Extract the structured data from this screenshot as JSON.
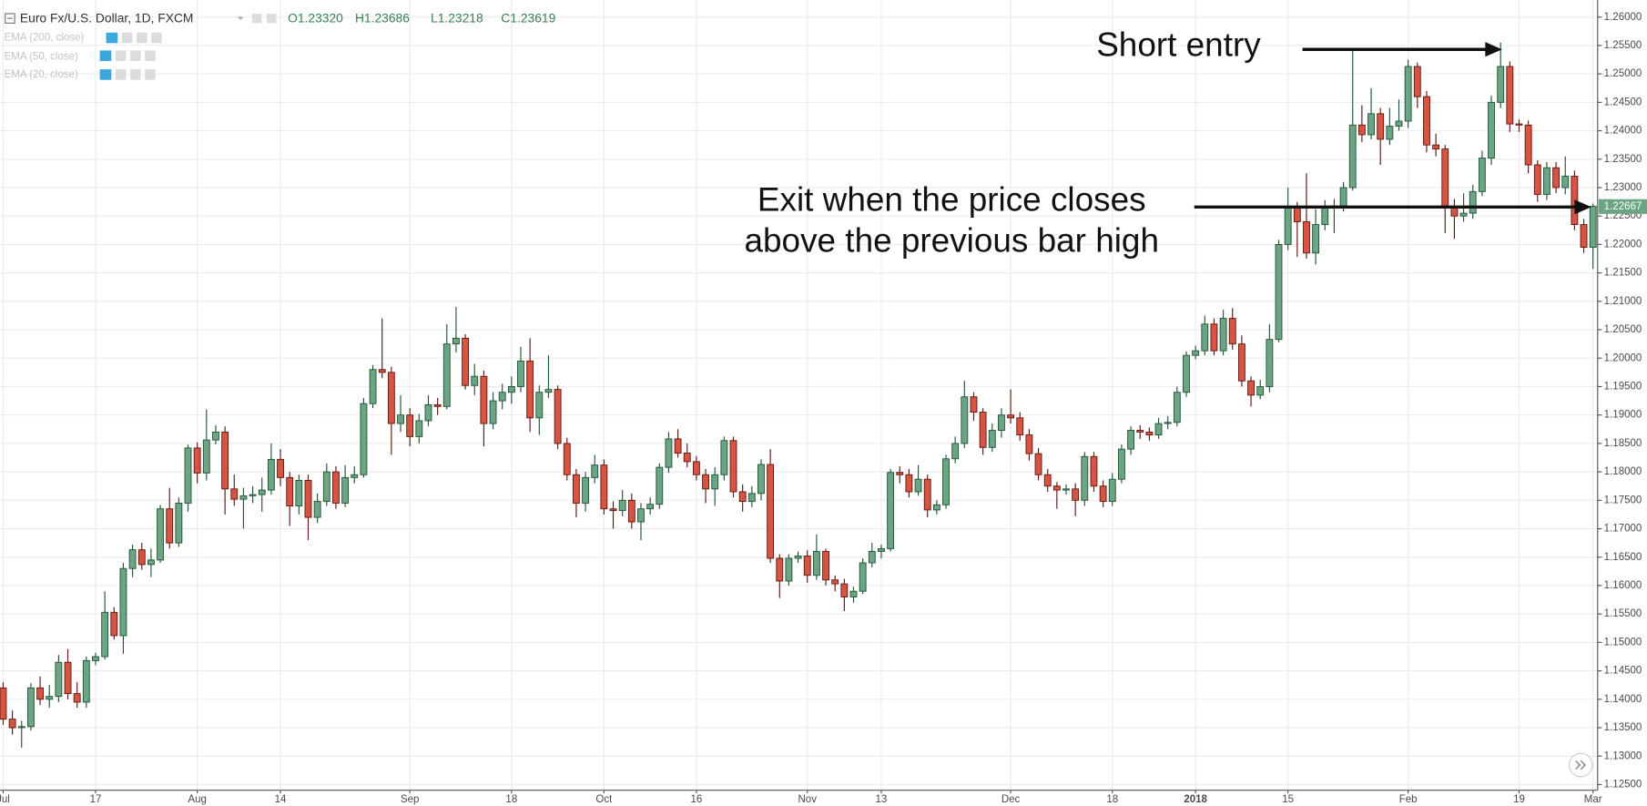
{
  "chart_data": {
    "type": "candlestick",
    "title": "Euro Fx/U.S. Dollar, 1D, FXCM",
    "ohlc_labels": [
      "O1.23320",
      "H1.23686",
      "L1.23218",
      "C1.23619"
    ],
    "indicators": [
      "EMA (200, close)",
      "EMA (50, close)",
      "EMA (20, close)"
    ],
    "annotations": [
      "Short entry",
      "Exit when the price closes",
      "above the previous bar high"
    ],
    "up_color": "#6ba583",
    "down_color": "#d75442",
    "last_price": 1.22667,
    "grid": true,
    "ylim": [
      1.124,
      1.263
    ],
    "yticks": [
      {
        "value": 1.125,
        "label": "1.12500"
      },
      {
        "value": 1.13,
        "label": "1.13000"
      },
      {
        "value": 1.135,
        "label": "1.13500"
      },
      {
        "value": 1.14,
        "label": "1.14000"
      },
      {
        "value": 1.145,
        "label": "1.14500"
      },
      {
        "value": 1.15,
        "label": "1.15000"
      },
      {
        "value": 1.155,
        "label": "1.15500"
      },
      {
        "value": 1.16,
        "label": "1.16000"
      },
      {
        "value": 1.165,
        "label": "1.16500"
      },
      {
        "value": 1.17,
        "label": "1.17000"
      },
      {
        "value": 1.175,
        "label": "1.17500"
      },
      {
        "value": 1.18,
        "label": "1.18000"
      },
      {
        "value": 1.185,
        "label": "1.18500"
      },
      {
        "value": 1.19,
        "label": "1.19000"
      },
      {
        "value": 1.195,
        "label": "1.19500"
      },
      {
        "value": 1.2,
        "label": "1.20000"
      },
      {
        "value": 1.205,
        "label": "1.20500"
      },
      {
        "value": 1.21,
        "label": "1.21000"
      },
      {
        "value": 1.215,
        "label": "1.21500"
      },
      {
        "value": 1.22,
        "label": "1.22000"
      },
      {
        "value": 1.225,
        "label": "1.22500"
      },
      {
        "value": 1.23,
        "label": "1.23000"
      },
      {
        "value": 1.235,
        "label": "1.23500"
      },
      {
        "value": 1.24,
        "label": "1.24000"
      },
      {
        "value": 1.245,
        "label": "1.24500"
      },
      {
        "value": 1.25,
        "label": "1.25000"
      },
      {
        "value": 1.255,
        "label": "1.25500"
      },
      {
        "value": 1.26,
        "label": "1.26000"
      }
    ],
    "categories": [
      "Jul",
      null,
      null,
      null,
      null,
      null,
      null,
      null,
      null,
      null,
      "17",
      null,
      null,
      null,
      null,
      null,
      null,
      null,
      null,
      null,
      null,
      "Aug",
      null,
      null,
      null,
      null,
      null,
      null,
      null,
      null,
      "14",
      null,
      null,
      null,
      null,
      null,
      null,
      null,
      null,
      null,
      null,
      null,
      null,
      null,
      "Sep",
      null,
      null,
      null,
      null,
      null,
      null,
      null,
      null,
      null,
      null,
      "18",
      null,
      null,
      null,
      null,
      null,
      null,
      null,
      null,
      null,
      "Oct",
      null,
      null,
      null,
      null,
      null,
      null,
      null,
      null,
      null,
      "16",
      null,
      null,
      null,
      null,
      null,
      null,
      null,
      null,
      null,
      null,
      null,
      "Nov",
      null,
      null,
      null,
      null,
      null,
      null,
      null,
      "13",
      null,
      null,
      null,
      null,
      null,
      null,
      null,
      null,
      null,
      null,
      null,
      null,
      null,
      "Dec",
      null,
      null,
      null,
      null,
      null,
      null,
      null,
      null,
      null,
      null,
      "18",
      null,
      null,
      null,
      null,
      null,
      null,
      null,
      null,
      "2018",
      null,
      null,
      null,
      null,
      null,
      null,
      null,
      null,
      null,
      "15",
      null,
      null,
      null,
      null,
      null,
      null,
      null,
      null,
      null,
      null,
      null,
      null,
      "Feb",
      null,
      null,
      null,
      null,
      null,
      null,
      null,
      null,
      null,
      null,
      null,
      "19",
      null,
      null,
      null,
      null,
      null,
      null,
      null,
      "Mar"
    ],
    "open": [
      1.142,
      1.1365,
      1.135,
      1.1352,
      1.142,
      1.14,
      1.1405,
      1.1465,
      1.141,
      1.1395,
      1.1468,
      1.1475,
      1.1553,
      1.1512,
      1.163,
      1.1663,
      1.1637,
      1.1645,
      1.1735,
      1.1675,
      1.1745,
      1.1842,
      1.1798,
      1.1856,
      1.187,
      1.177,
      1.1752,
      1.1758,
      1.176,
      1.1768,
      1.1822,
      1.179,
      1.174,
      1.1785,
      1.172,
      1.1748,
      1.18,
      1.1745,
      1.179,
      1.1795,
      1.192,
      1.198,
      1.1975,
      1.1885,
      1.19,
      1.1862,
      1.189,
      1.1918,
      1.1915,
      1.2025,
      1.2035,
      1.1952,
      1.1968,
      1.1885,
      1.1925,
      1.194,
      1.195,
      1.1995,
      1.1895,
      1.194,
      1.1945,
      1.185,
      1.1795,
      1.1745,
      1.179,
      1.1812,
      1.1735,
      1.1732,
      1.175,
      1.1712,
      1.1735,
      1.1743,
      1.1808,
      1.1858,
      1.1833,
      1.1818,
      1.1795,
      1.177,
      1.1795,
      1.1855,
      1.1765,
      1.1748,
      1.1762,
      1.1813,
      1.1648,
      1.1608,
      1.1648,
      1.1652,
      1.1618,
      1.166,
      1.161,
      1.1603,
      1.158,
      1.159,
      1.164,
      1.166,
      1.1665,
      1.1799,
      1.1795,
      1.1765,
      1.1787,
      1.1733,
      1.1742,
      1.1823,
      1.185,
      1.1932,
      1.1905,
      1.1843,
      1.1873,
      1.19,
      1.1895,
      1.1865,
      1.1832,
      1.1795,
      1.1775,
      1.1768,
      1.177,
      1.175,
      1.1827,
      1.1775,
      1.1748,
      1.1787,
      1.184,
      1.1873,
      1.187,
      1.1865,
      1.1885,
      1.1887,
      1.194,
      1.2005,
      1.2013,
      1.206,
      1.2013,
      1.207,
      1.2025,
      1.196,
      1.1935,
      1.195,
      1.2033,
      1.22,
      1.2265,
      1.224,
      1.2185,
      1.2235,
      1.2265,
      1.2268,
      1.23,
      1.241,
      1.2393,
      1.243,
      1.2385,
      1.2408,
      1.2417,
      1.2513,
      1.246,
      1.2375,
      1.2368,
      1.2265,
      1.225,
      1.2255,
      1.2293,
      1.2352,
      1.245,
      1.2513,
      1.2412,
      1.241,
      1.234,
      1.2288,
      1.2335,
      1.23,
      1.232,
      1.2235,
      1.2195
    ],
    "high": [
      1.143,
      1.138,
      1.1362,
      1.1428,
      1.144,
      1.1425,
      1.1478,
      1.1488,
      1.143,
      1.1475,
      1.1482,
      1.159,
      1.1562,
      1.164,
      1.1672,
      1.1675,
      1.1665,
      1.1742,
      1.1772,
      1.1755,
      1.1848,
      1.1852,
      1.191,
      1.1882,
      1.188,
      1.1795,
      1.1772,
      1.1775,
      1.179,
      1.185,
      1.184,
      1.18,
      1.1795,
      1.1795,
      1.1762,
      1.1815,
      1.181,
      1.1812,
      1.181,
      1.193,
      1.1988,
      1.207,
      1.1985,
      1.1935,
      1.1912,
      1.1902,
      1.1935,
      1.193,
      1.206,
      1.209,
      1.2042,
      1.199,
      1.1978,
      1.194,
      1.1955,
      1.1968,
      1.202,
      1.2035,
      1.1952,
      1.2005,
      1.1952,
      1.186,
      1.1805,
      1.18,
      1.183,
      1.1822,
      1.1748,
      1.1768,
      1.1762,
      1.1745,
      1.1755,
      1.1815,
      1.187,
      1.1875,
      1.185,
      1.1828,
      1.1805,
      1.1808,
      1.1862,
      1.1862,
      1.1778,
      1.1775,
      1.1822,
      1.184,
      1.1655,
      1.1655,
      1.166,
      1.1662,
      1.169,
      1.1665,
      1.1618,
      1.1612,
      1.1598,
      1.1648,
      1.1675,
      1.1672,
      1.1805,
      1.181,
      1.1805,
      1.1812,
      1.1795,
      1.175,
      1.183,
      1.1862,
      1.196,
      1.194,
      1.1912,
      1.1885,
      1.1912,
      1.1945,
      1.1905,
      1.1875,
      1.1842,
      1.1805,
      1.1782,
      1.1778,
      1.178,
      1.1835,
      1.1835,
      1.1785,
      1.1798,
      1.1848,
      1.188,
      1.1882,
      1.1878,
      1.1895,
      1.1898,
      1.195,
      1.2012,
      1.2022,
      1.2075,
      1.207,
      1.2085,
      1.2088,
      1.204,
      1.1968,
      1.1962,
      1.206,
      1.2208,
      1.23,
      1.2275,
      1.2325,
      1.2262,
      1.2278,
      1.228,
      1.231,
      1.2543,
      1.2445,
      1.2475,
      1.244,
      1.244,
      1.2455,
      1.2525,
      1.252,
      1.247,
      1.2395,
      1.2375,
      1.228,
      1.229,
      1.2305,
      1.2365,
      1.2462,
      1.2555,
      1.2522,
      1.242,
      1.2418,
      1.2348,
      1.2345,
      1.2345,
      1.2355,
      1.233,
      1.2245,
      1.2272
    ],
    "low": [
      1.1355,
      1.1338,
      1.1315,
      1.1345,
      1.139,
      1.1385,
      1.1395,
      1.14,
      1.1385,
      1.1385,
      1.146,
      1.147,
      1.1505,
      1.148,
      1.1615,
      1.1628,
      1.1615,
      1.164,
      1.1665,
      1.1668,
      1.173,
      1.178,
      1.1785,
      1.1848,
      1.1725,
      1.174,
      1.17,
      1.1745,
      1.173,
      1.176,
      1.1775,
      1.1705,
      1.1725,
      1.168,
      1.171,
      1.174,
      1.1735,
      1.1738,
      1.178,
      1.179,
      1.1912,
      1.1965,
      1.183,
      1.187,
      1.1845,
      1.185,
      1.188,
      1.19,
      1.191,
      1.201,
      1.1945,
      1.1935,
      1.1845,
      1.1875,
      1.191,
      1.192,
      1.194,
      1.187,
      1.1865,
      1.193,
      1.184,
      1.1785,
      1.172,
      1.173,
      1.178,
      1.1725,
      1.17,
      1.1722,
      1.17,
      1.168,
      1.1725,
      1.1735,
      1.1798,
      1.1825,
      1.1808,
      1.1785,
      1.1745,
      1.174,
      1.1785,
      1.1755,
      1.173,
      1.1738,
      1.175,
      1.164,
      1.1578,
      1.16,
      1.164,
      1.1605,
      1.161,
      1.16,
      1.159,
      1.1555,
      1.157,
      1.1585,
      1.1632,
      1.1648,
      1.166,
      1.178,
      1.1755,
      1.1758,
      1.172,
      1.1725,
      1.1735,
      1.1815,
      1.1842,
      1.189,
      1.183,
      1.1835,
      1.186,
      1.1885,
      1.1855,
      1.182,
      1.1785,
      1.1765,
      1.1735,
      1.176,
      1.1722,
      1.174,
      1.1765,
      1.1738,
      1.174,
      1.178,
      1.183,
      1.1858,
      1.1855,
      1.1858,
      1.1875,
      1.188,
      1.1932,
      1.1998,
      1.2005,
      1.2005,
      1.2005,
      1.2015,
      1.195,
      1.1915,
      1.1928,
      1.194,
      1.2028,
      1.219,
      1.2178,
      1.2175,
      1.2165,
      1.2225,
      1.222,
      1.2258,
      1.2295,
      1.238,
      1.2385,
      1.234,
      1.2375,
      1.24,
      1.2405,
      1.244,
      1.2362,
      1.2355,
      1.222,
      1.221,
      1.224,
      1.2245,
      1.2285,
      1.234,
      1.244,
      1.2398,
      1.2398,
      1.2325,
      1.2275,
      1.2278,
      1.229,
      1.2288,
      1.2225,
      1.2185,
      1.2157
    ],
    "close": [
      1.1365,
      1.135,
      1.1352,
      1.142,
      1.14,
      1.1405,
      1.1465,
      1.141,
      1.1395,
      1.1468,
      1.1475,
      1.1553,
      1.1512,
      1.163,
      1.1663,
      1.1637,
      1.1645,
      1.1735,
      1.1675,
      1.1745,
      1.1842,
      1.1798,
      1.1856,
      1.187,
      1.177,
      1.1752,
      1.1758,
      1.176,
      1.1768,
      1.1822,
      1.179,
      1.174,
      1.1785,
      1.172,
      1.1748,
      1.18,
      1.1745,
      1.179,
      1.1795,
      1.192,
      1.198,
      1.1975,
      1.1885,
      1.19,
      1.1862,
      1.189,
      1.1918,
      1.1915,
      1.2025,
      1.2035,
      1.1952,
      1.1968,
      1.1885,
      1.1925,
      1.194,
      1.195,
      1.1995,
      1.1895,
      1.194,
      1.1945,
      1.185,
      1.1795,
      1.1745,
      1.179,
      1.1812,
      1.1735,
      1.1732,
      1.175,
      1.1712,
      1.1735,
      1.1743,
      1.1808,
      1.1858,
      1.1833,
      1.1818,
      1.1795,
      1.177,
      1.1795,
      1.1855,
      1.1765,
      1.1748,
      1.1762,
      1.1813,
      1.1648,
      1.1608,
      1.1648,
      1.1652,
      1.1618,
      1.166,
      1.161,
      1.1603,
      1.158,
      1.159,
      1.164,
      1.166,
      1.1665,
      1.1799,
      1.1795,
      1.1765,
      1.1787,
      1.1733,
      1.1742,
      1.1823,
      1.185,
      1.1932,
      1.1905,
      1.1843,
      1.1873,
      1.19,
      1.1895,
      1.1865,
      1.1832,
      1.1795,
      1.1775,
      1.1768,
      1.177,
      1.175,
      1.1827,
      1.1775,
      1.1748,
      1.1787,
      1.184,
      1.1873,
      1.187,
      1.1865,
      1.1885,
      1.1887,
      1.194,
      1.2005,
      1.2013,
      1.206,
      1.2013,
      1.207,
      1.2025,
      1.196,
      1.1935,
      1.195,
      1.2033,
      1.22,
      1.2265,
      1.224,
      1.2185,
      1.2235,
      1.2265,
      1.2268,
      1.23,
      1.241,
      1.2393,
      1.243,
      1.2385,
      1.2408,
      1.2417,
      1.2513,
      1.246,
      1.2375,
      1.2368,
      1.2265,
      1.225,
      1.2255,
      1.2293,
      1.2352,
      1.245,
      1.2513,
      1.2412,
      1.241,
      1.234,
      1.2288,
      1.2335,
      1.23,
      1.232,
      1.2235,
      1.2195,
      1.2267
    ]
  }
}
